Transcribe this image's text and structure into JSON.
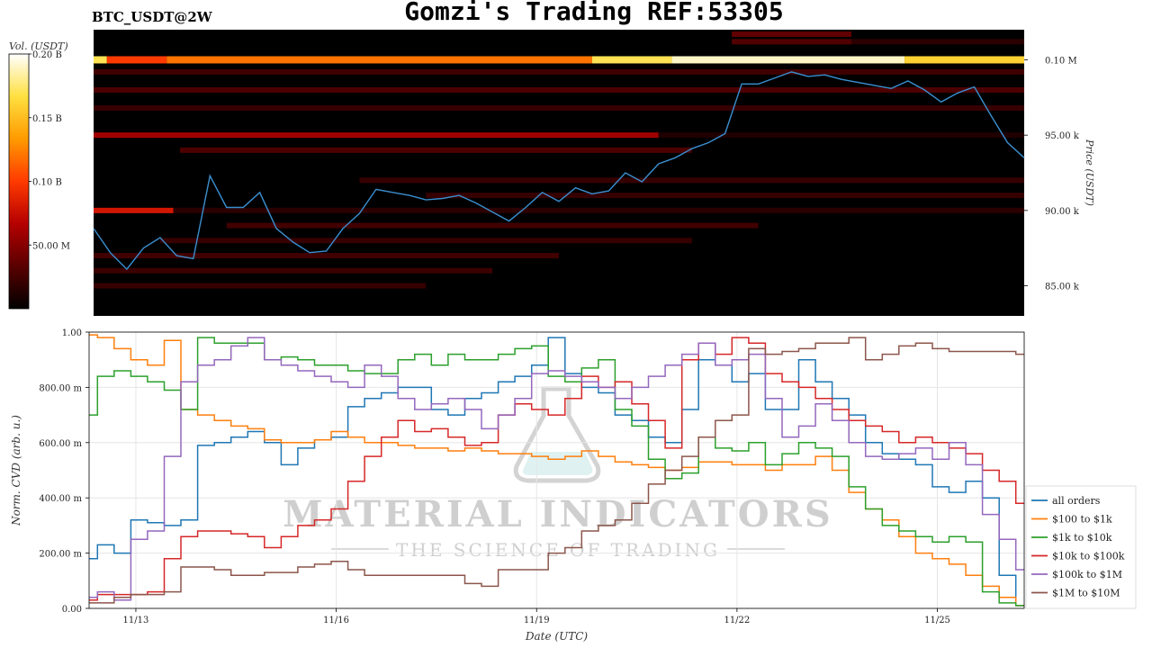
{
  "header": {
    "title": "Gomzi's Trading REF:53305",
    "pair": "BTC_USDT@2W"
  },
  "watermark": {
    "brand": "MATERIAL INDICATORS",
    "tagline": "THE SCIENCE OF TRADING"
  },
  "colorbar": {
    "label": "Vol. (USDT)",
    "ticks": [
      {
        "value": 0.2,
        "label": "0.20 B"
      },
      {
        "value": 0.15,
        "label": "0.15 B"
      },
      {
        "value": 0.1,
        "label": "0.10 B"
      },
      {
        "value": 0.05,
        "label": "50.00 M"
      }
    ],
    "range": [
      0,
      0.2
    ]
  },
  "chart_data": [
    {
      "type": "heatmap",
      "ylabel": "Price (USDT)",
      "ylim": [
        83000,
        102000
      ],
      "yticks": [
        {
          "value": 100000,
          "label": "0.10 M"
        },
        {
          "value": 95000,
          "label": "95.00 k"
        },
        {
          "value": 90000,
          "label": "90.00 k"
        },
        {
          "value": 85000,
          "label": "85.00 k"
        }
      ],
      "xlim": [
        0,
        14
      ],
      "colorscale": [
        "#000000",
        "#5a0000",
        "#b40000",
        "#ff3a00",
        "#ff9a00",
        "#ffe040",
        "#ffffff"
      ],
      "bands": [
        {
          "price": 100000,
          "segments": [
            [
              0.0,
              0.2,
              0.85
            ],
            [
              0.2,
              1.1,
              0.5
            ],
            [
              1.1,
              7.5,
              0.6
            ],
            [
              7.5,
              8.7,
              0.85
            ],
            [
              8.7,
              12.2,
              0.95
            ],
            [
              12.2,
              14.0,
              0.8
            ]
          ]
        },
        {
          "price": 101700,
          "segments": [
            [
              9.6,
              11.4,
              0.18
            ]
          ]
        },
        {
          "price": 101200,
          "segments": [
            [
              9.6,
              11.4,
              0.15
            ],
            [
              11.4,
              14.0,
              0.08
            ]
          ]
        },
        {
          "price": 99200,
          "segments": [
            [
              0.0,
              14.0,
              0.12
            ]
          ]
        },
        {
          "price": 98000,
          "segments": [
            [
              0.0,
              14.0,
              0.14
            ]
          ]
        },
        {
          "price": 96800,
          "segments": [
            [
              0.0,
              14.0,
              0.1
            ]
          ]
        },
        {
          "price": 95000,
          "segments": [
            [
              0.0,
              8.5,
              0.3
            ],
            [
              8.5,
              14.0,
              0.06
            ]
          ]
        },
        {
          "price": 94000,
          "segments": [
            [
              1.3,
              9.0,
              0.14
            ]
          ]
        },
        {
          "price": 92000,
          "segments": [
            [
              4.0,
              14.0,
              0.1
            ]
          ]
        },
        {
          "price": 91000,
          "segments": [
            [
              5.0,
              14.0,
              0.1
            ]
          ]
        },
        {
          "price": 90000,
          "segments": [
            [
              0.0,
              1.2,
              0.4
            ],
            [
              1.2,
              14.0,
              0.08
            ]
          ]
        },
        {
          "price": 89000,
          "segments": [
            [
              2.0,
              10.0,
              0.12
            ]
          ]
        },
        {
          "price": 88000,
          "segments": [
            [
              1.0,
              9.0,
              0.1
            ]
          ]
        },
        {
          "price": 87000,
          "segments": [
            [
              0.0,
              7.0,
              0.12
            ]
          ]
        },
        {
          "price": 86000,
          "segments": [
            [
              0.0,
              6.0,
              0.11
            ]
          ]
        },
        {
          "price": 85000,
          "segments": [
            [
              0.0,
              5.0,
              0.1
            ]
          ]
        }
      ],
      "price_line": {
        "name": "Price",
        "color": "#3a8fd0",
        "x": [
          0.0,
          0.25,
          0.5,
          0.75,
          1.0,
          1.25,
          1.5,
          1.75,
          2.0,
          2.25,
          2.5,
          2.75,
          3.0,
          3.25,
          3.5,
          3.75,
          4.0,
          4.25,
          4.5,
          4.75,
          5.0,
          5.25,
          5.5,
          5.75,
          6.0,
          6.25,
          6.5,
          6.75,
          7.0,
          7.25,
          7.5,
          7.75,
          8.0,
          8.25,
          8.5,
          8.75,
          9.0,
          9.25,
          9.5,
          9.75,
          10.0,
          10.25,
          10.5,
          10.75,
          11.0,
          11.25,
          11.5,
          11.75,
          12.0,
          12.25,
          12.5,
          12.75,
          13.0,
          13.25,
          13.5,
          13.75,
          14.0
        ],
        "y": [
          88800,
          87200,
          86100,
          87500,
          88200,
          87000,
          86800,
          92300,
          90200,
          90200,
          91200,
          88800,
          87900,
          87200,
          87300,
          88800,
          89800,
          91400,
          91200,
          91000,
          90700,
          90800,
          91000,
          90500,
          89900,
          89300,
          90200,
          91200,
          90600,
          91500,
          91100,
          91300,
          92500,
          91900,
          93100,
          93500,
          94100,
          94500,
          95100,
          98400,
          98400,
          98800,
          99200,
          98900,
          99000,
          98700,
          98500,
          98300,
          98100,
          98600,
          98000,
          97200,
          97800,
          98200,
          96300,
          94500,
          93500
        ]
      }
    },
    {
      "type": "line",
      "xlabel": "Date (UTC)",
      "ylabel": "Norm. CVD (arb. u.)",
      "ylim": [
        0,
        1
      ],
      "xlim": [
        0,
        14
      ],
      "yticks": [
        {
          "value": 1.0,
          "label": "1.00"
        },
        {
          "value": 0.8,
          "label": "800.00 m"
        },
        {
          "value": 0.6,
          "label": "600.00 m"
        },
        {
          "value": 0.4,
          "label": "400.00 m"
        },
        {
          "value": 0.2,
          "label": "200.00 m"
        },
        {
          "value": 0.0,
          "label": "0.00"
        }
      ],
      "xticks": [
        {
          "value": 0.7,
          "label": "11/13"
        },
        {
          "value": 3.7,
          "label": "11/16"
        },
        {
          "value": 6.7,
          "label": "11/19"
        },
        {
          "value": 9.7,
          "label": "11/22"
        },
        {
          "value": 12.7,
          "label": "11/25"
        }
      ],
      "legend": {
        "placement": "right"
      },
      "x": [
        0.0,
        0.25,
        0.5,
        0.75,
        1.0,
        1.25,
        1.5,
        1.75,
        2.0,
        2.25,
        2.5,
        2.75,
        3.0,
        3.25,
        3.5,
        3.75,
        4.0,
        4.25,
        4.5,
        4.75,
        5.0,
        5.25,
        5.5,
        5.75,
        6.0,
        6.25,
        6.5,
        6.75,
        7.0,
        7.25,
        7.5,
        7.75,
        8.0,
        8.25,
        8.5,
        8.75,
        9.0,
        9.25,
        9.5,
        9.75,
        10.0,
        10.25,
        10.5,
        10.75,
        11.0,
        11.25,
        11.5,
        11.75,
        12.0,
        12.25,
        12.5,
        12.75,
        13.0,
        13.25,
        13.5,
        13.75,
        14.0
      ],
      "series": [
        {
          "name": "all orders",
          "color": "#1f77b4",
          "values": [
            0.18,
            0.23,
            0.2,
            0.32,
            0.31,
            0.3,
            0.32,
            0.59,
            0.6,
            0.62,
            0.64,
            0.6,
            0.52,
            0.58,
            0.61,
            0.62,
            0.73,
            0.76,
            0.78,
            0.8,
            0.8,
            0.72,
            0.7,
            0.76,
            0.78,
            0.82,
            0.84,
            0.88,
            0.98,
            0.85,
            0.8,
            0.78,
            0.7,
            0.68,
            0.62,
            0.6,
            0.72,
            0.9,
            0.88,
            0.82,
            0.85,
            0.72,
            0.72,
            0.9,
            0.82,
            0.76,
            0.7,
            0.6,
            0.56,
            0.54,
            0.52,
            0.44,
            0.42,
            0.46,
            0.4,
            0.12,
            0.01
          ]
        },
        {
          "name": "$100 to $1k",
          "color": "#ff7f0e",
          "values": [
            0.99,
            0.98,
            0.94,
            0.9,
            0.88,
            0.97,
            0.72,
            0.7,
            0.68,
            0.66,
            0.65,
            0.61,
            0.6,
            0.6,
            0.61,
            0.64,
            0.62,
            0.6,
            0.6,
            0.59,
            0.58,
            0.58,
            0.57,
            0.58,
            0.57,
            0.56,
            0.56,
            0.55,
            0.54,
            0.55,
            0.57,
            0.55,
            0.53,
            0.52,
            0.51,
            0.5,
            0.51,
            0.53,
            0.53,
            0.52,
            0.52,
            0.5,
            0.52,
            0.52,
            0.55,
            0.5,
            0.42,
            0.36,
            0.32,
            0.26,
            0.2,
            0.18,
            0.16,
            0.12,
            0.08,
            0.04,
            0.01
          ]
        },
        {
          "name": "$1k to $10k",
          "color": "#2ca02c",
          "values": [
            0.7,
            0.84,
            0.86,
            0.84,
            0.82,
            0.79,
            0.72,
            0.98,
            0.96,
            0.96,
            0.96,
            0.9,
            0.91,
            0.9,
            0.88,
            0.88,
            0.86,
            0.85,
            0.85,
            0.9,
            0.92,
            0.88,
            0.92,
            0.9,
            0.9,
            0.92,
            0.94,
            0.95,
            0.84,
            0.82,
            0.87,
            0.9,
            0.72,
            0.66,
            0.54,
            0.47,
            0.49,
            0.62,
            0.58,
            0.57,
            0.6,
            0.52,
            0.56,
            0.6,
            0.58,
            0.55,
            0.44,
            0.36,
            0.3,
            0.28,
            0.26,
            0.24,
            0.26,
            0.24,
            0.06,
            0.02,
            0.01
          ]
        },
        {
          "name": "$10k to $100k",
          "color": "#d62728",
          "values": [
            0.03,
            0.05,
            0.05,
            0.05,
            0.06,
            0.18,
            0.26,
            0.28,
            0.28,
            0.27,
            0.26,
            0.22,
            0.26,
            0.3,
            0.32,
            0.36,
            0.46,
            0.55,
            0.62,
            0.68,
            0.64,
            0.65,
            0.62,
            0.59,
            0.6,
            0.7,
            0.74,
            0.72,
            0.7,
            0.76,
            0.84,
            0.8,
            0.82,
            0.74,
            0.68,
            0.58,
            0.9,
            0.96,
            0.92,
            0.98,
            0.96,
            0.85,
            0.82,
            0.8,
            0.76,
            0.72,
            0.68,
            0.66,
            0.64,
            0.6,
            0.62,
            0.6,
            0.58,
            0.56,
            0.5,
            0.46,
            0.38
          ]
        },
        {
          "name": "$100k to $1M",
          "color": "#9467bd",
          "values": [
            0.04,
            0.06,
            0.03,
            0.25,
            0.28,
            0.55,
            0.82,
            0.88,
            0.9,
            0.95,
            0.98,
            0.9,
            0.88,
            0.86,
            0.84,
            0.82,
            0.8,
            0.88,
            0.84,
            0.76,
            0.72,
            0.74,
            0.76,
            0.72,
            0.65,
            0.7,
            0.76,
            0.85,
            0.86,
            0.84,
            0.82,
            0.8,
            0.76,
            0.8,
            0.84,
            0.88,
            0.92,
            0.96,
            0.88,
            0.9,
            0.92,
            0.76,
            0.62,
            0.66,
            0.74,
            0.68,
            0.6,
            0.55,
            0.54,
            0.56,
            0.58,
            0.54,
            0.6,
            0.52,
            0.34,
            0.25,
            0.14
          ]
        },
        {
          "name": "$1M to $10M",
          "color": "#8c564b",
          "values": [
            0.02,
            0.02,
            0.04,
            0.05,
            0.05,
            0.06,
            0.15,
            0.15,
            0.14,
            0.12,
            0.12,
            0.13,
            0.13,
            0.15,
            0.16,
            0.17,
            0.14,
            0.12,
            0.12,
            0.12,
            0.12,
            0.12,
            0.12,
            0.09,
            0.08,
            0.14,
            0.14,
            0.14,
            0.2,
            0.22,
            0.28,
            0.3,
            0.32,
            0.38,
            0.45,
            0.5,
            0.55,
            0.62,
            0.68,
            0.7,
            0.94,
            0.92,
            0.93,
            0.94,
            0.96,
            0.96,
            0.98,
            0.9,
            0.92,
            0.95,
            0.96,
            0.94,
            0.93,
            0.93,
            0.93,
            0.93,
            0.92
          ]
        }
      ]
    }
  ]
}
